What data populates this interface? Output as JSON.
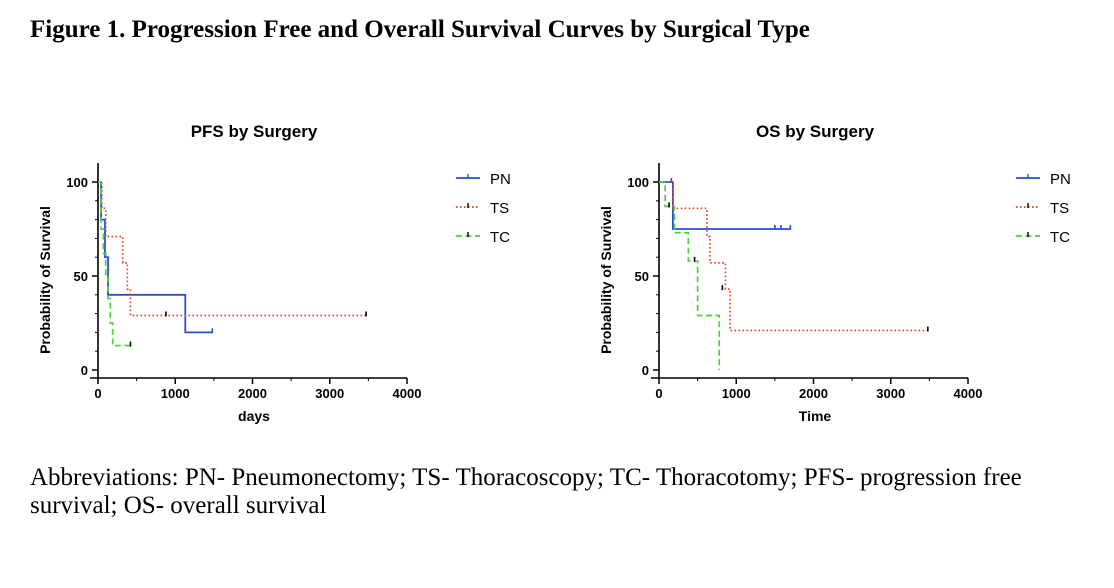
{
  "figure_title": "Figure 1. Progression Free and Overall Survival Curves by Surgical Type",
  "caption": "Abbreviations: PN- Pneumonectomy; TS- Thoracoscopy; TC- Thoracotomy; PFS- progression free survival; OS- overall survival",
  "colors": {
    "PN": "#2a4fd1",
    "TS": "#e8402a",
    "TC": "#4fcf3f"
  },
  "chart_data": [
    {
      "type": "line",
      "subtype": "kaplan-meier step",
      "title": "PFS by Surgery",
      "xlabel": "days",
      "ylabel": "Probability of Survival",
      "xlim": [
        0,
        4000
      ],
      "ylim": [
        0,
        100
      ],
      "xticks": [
        0,
        1000,
        2000,
        3000,
        4000
      ],
      "yticks": [
        0,
        50,
        100
      ],
      "legend_position": "right",
      "series": [
        {
          "name": "PN",
          "style": "solid",
          "steps": [
            [
              0,
              100
            ],
            [
              40,
              80
            ],
            [
              90,
              60
            ],
            [
              130,
              40
            ],
            [
              1130,
              20
            ],
            [
              1480,
              20
            ]
          ],
          "censored": [
            [
              1480,
              20
            ]
          ]
        },
        {
          "name": "TS",
          "style": "dotted",
          "steps": [
            [
              0,
              100
            ],
            [
              50,
              86
            ],
            [
              100,
              71
            ],
            [
              320,
              57
            ],
            [
              380,
              43
            ],
            [
              420,
              29
            ],
            [
              3470,
              29
            ]
          ],
          "censored": [
            [
              880,
              29
            ],
            [
              3470,
              29
            ]
          ]
        },
        {
          "name": "TC",
          "style": "dashed",
          "steps": [
            [
              0,
              100
            ],
            [
              40,
              75
            ],
            [
              70,
              62
            ],
            [
              100,
              50
            ],
            [
              130,
              38
            ],
            [
              160,
              25
            ],
            [
              190,
              13
            ],
            [
              420,
              13
            ]
          ],
          "censored": [
            [
              420,
              13
            ]
          ]
        }
      ]
    },
    {
      "type": "line",
      "subtype": "kaplan-meier step",
      "title": "OS by Surgery",
      "xlabel": "Time",
      "ylabel": "Probability of Survival",
      "xlim": [
        0,
        4000
      ],
      "ylim": [
        0,
        100
      ],
      "xticks": [
        0,
        1000,
        2000,
        3000,
        4000
      ],
      "yticks": [
        0,
        50,
        100
      ],
      "legend_position": "right",
      "series": [
        {
          "name": "PN",
          "style": "solid",
          "steps": [
            [
              0,
              100
            ],
            [
              180,
              75
            ],
            [
              1700,
              75
            ]
          ],
          "censored": [
            [
              160,
              100
            ],
            [
              1500,
              75
            ],
            [
              1580,
              75
            ],
            [
              1700,
              75
            ]
          ]
        },
        {
          "name": "TS",
          "style": "dotted",
          "steps": [
            [
              0,
              100
            ],
            [
              180,
              86
            ],
            [
              620,
              71
            ],
            [
              660,
              57
            ],
            [
              860,
              43
            ],
            [
              920,
              21
            ],
            [
              3480,
              21
            ]
          ],
          "censored": [
            [
              820,
              43
            ],
            [
              3480,
              21
            ]
          ]
        },
        {
          "name": "TC",
          "style": "dashed",
          "steps": [
            [
              0,
              100
            ],
            [
              80,
              87
            ],
            [
              200,
              73
            ],
            [
              380,
              58
            ],
            [
              500,
              29
            ],
            [
              780,
              0
            ]
          ],
          "censored": [
            [
              130,
              87
            ],
            [
              460,
              58
            ]
          ]
        }
      ]
    }
  ]
}
